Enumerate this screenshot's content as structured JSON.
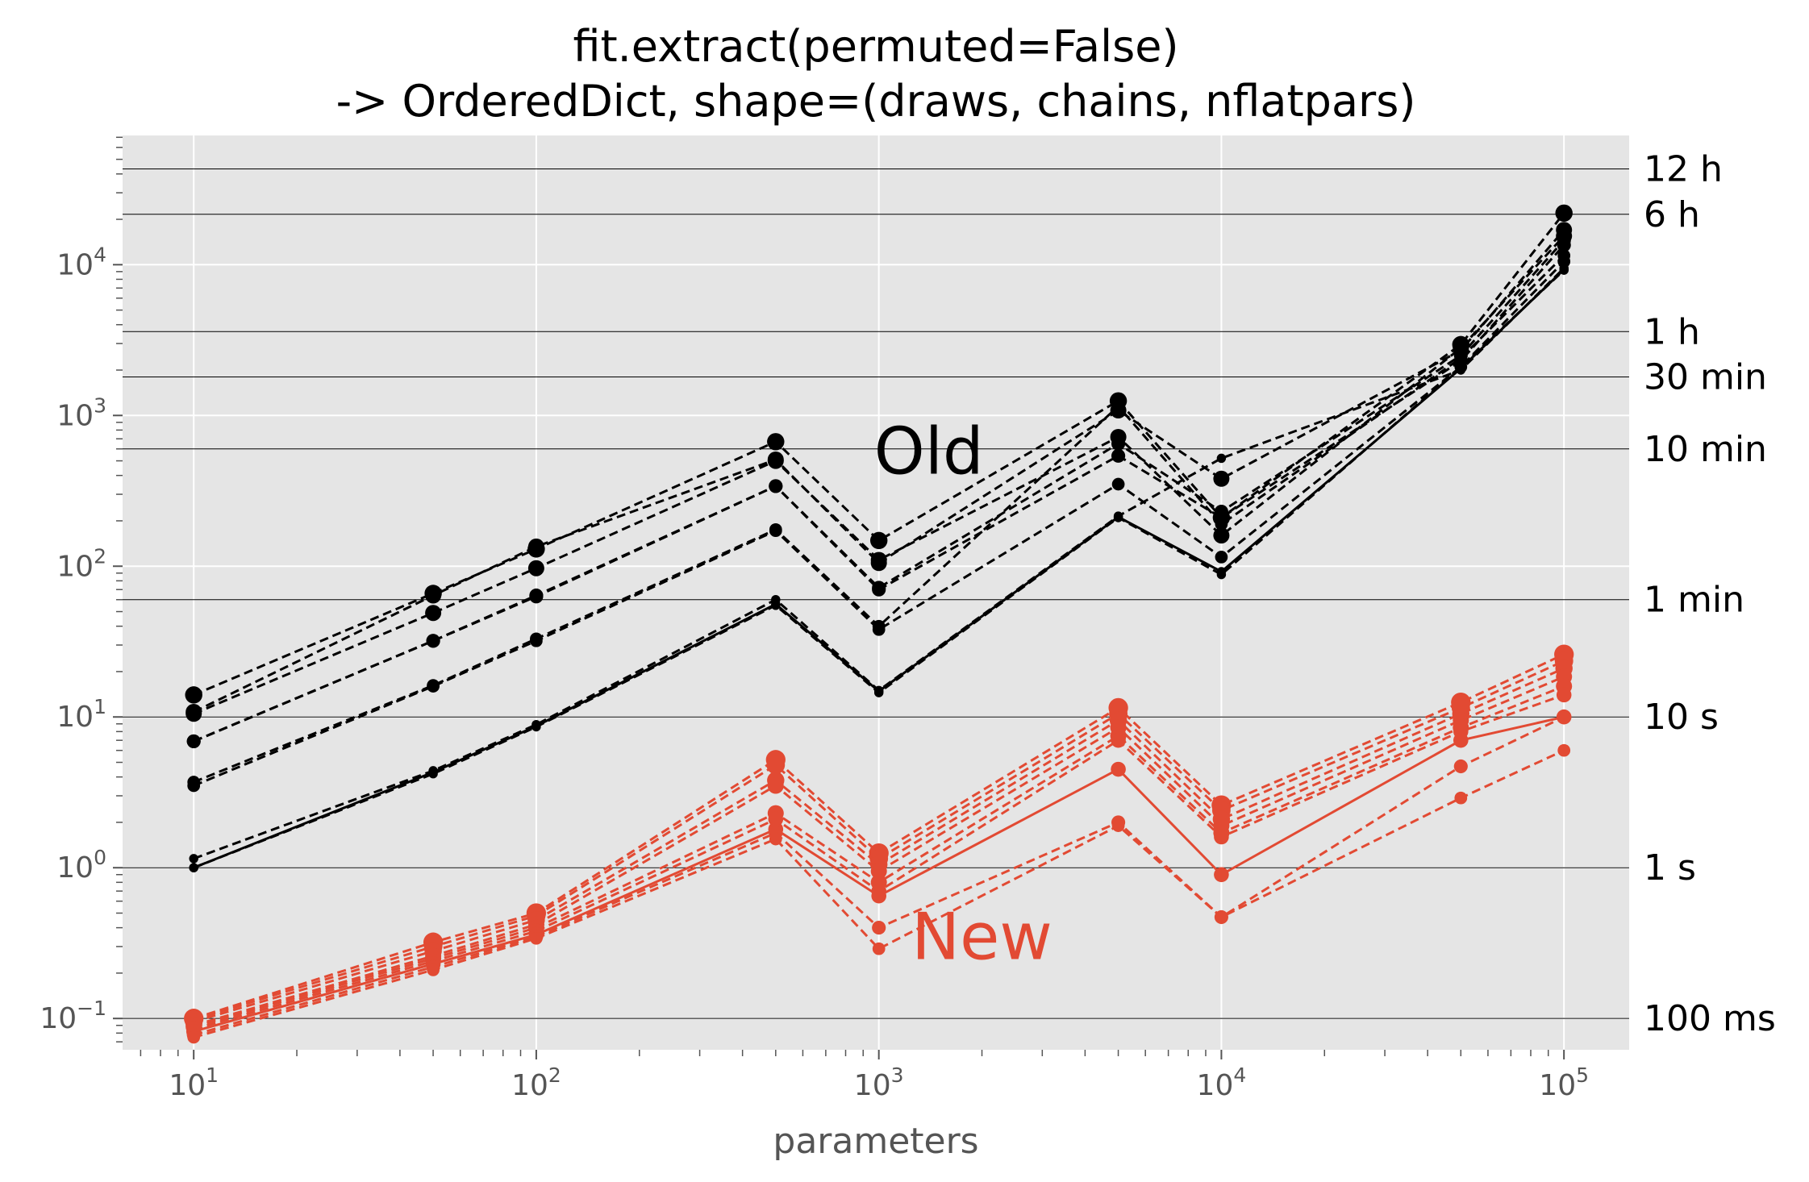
{
  "chart_data": {
    "type": "line",
    "title": "fit.extract(permuted=False)",
    "subtitle": "-> OrderedDict, shape=(draws, chains, nflatpars)",
    "xlabel": "parameters",
    "ylabel": "",
    "x_scale": "log",
    "y_scale": "log",
    "xlim": [
      6.2,
      155000
    ],
    "ylim": [
      0.062,
      72000
    ],
    "x_ticks": [
      {
        "value": 10,
        "base": "10",
        "exp": "1"
      },
      {
        "value": 100,
        "base": "10",
        "exp": "2"
      },
      {
        "value": 1000,
        "base": "10",
        "exp": "3"
      },
      {
        "value": 10000,
        "base": "10",
        "exp": "4"
      },
      {
        "value": 100000,
        "base": "10",
        "exp": "5"
      }
    ],
    "y_ticks": [
      {
        "value": 0.1,
        "base": "10",
        "exp": "−1"
      },
      {
        "value": 1,
        "base": "10",
        "exp": "0"
      },
      {
        "value": 10,
        "base": "10",
        "exp": "1"
      },
      {
        "value": 100,
        "base": "10",
        "exp": "2"
      },
      {
        "value": 1000,
        "base": "10",
        "exp": "3"
      },
      {
        "value": 10000,
        "base": "10",
        "exp": "4"
      }
    ],
    "time_references": [
      {
        "label": "100 ms",
        "seconds": 0.1
      },
      {
        "label": "1 s",
        "seconds": 1
      },
      {
        "label": "10 s",
        "seconds": 10
      },
      {
        "label": "1 min",
        "seconds": 60
      },
      {
        "label": "10 min",
        "seconds": 600
      },
      {
        "label": "30 min",
        "seconds": 1800
      },
      {
        "label": "1 h",
        "seconds": 3600
      },
      {
        "label": "6 h",
        "seconds": 21600
      },
      {
        "label": "12 h",
        "seconds": 43200
      }
    ],
    "annotations": [
      {
        "text": "Old",
        "x": 1400,
        "y": 580,
        "color": "#000000"
      },
      {
        "text": "New",
        "x": 2000,
        "y": 0.35,
        "color": "#e24a33"
      }
    ],
    "background": "#e5e5e5",
    "grid": true,
    "x": [
      10,
      50,
      100,
      500,
      1000,
      5000,
      10000,
      50000,
      100000
    ],
    "groups": [
      {
        "label": "Old",
        "color": "#000000",
        "series": [
          {
            "values": [
              14.0,
              66.0,
              130.0,
              670.0,
              148.0,
              1250.0,
              210.0,
              2950.0,
              22000.0
            ],
            "marker": 15,
            "dash": true
          },
          {
            "values": [
              10.8,
              64.0,
              135.0,
              510.0,
              105.0,
              1080.0,
              380.0,
              2700.0,
              17000.0
            ],
            "marker": 14,
            "dash": true
          },
          {
            "values": [
              10.5,
              49.0,
              97.0,
              500.0,
              110.0,
              720.0,
              160.0,
              2800.0,
              15500.0
            ],
            "marker": 14,
            "dash": true
          },
          {
            "values": [
              6.9,
              32.0,
              64.0,
              340.0,
              72.0,
              650.0,
              230.0,
              2500.0,
              14500.0
            ],
            "marker": 12,
            "dash": true
          },
          {
            "values": [
              6.9,
              32.0,
              63.0,
              340.0,
              70.0,
              540.0,
              210.0,
              2300.0,
              13500.0
            ],
            "marker": 12,
            "dash": true
          },
          {
            "values": [
              3.7,
              16.2,
              33.0,
              175.0,
              40.0,
              1150.0,
              190.0,
              2400.0,
              11500.0
            ],
            "marker": 11,
            "dash": true
          },
          {
            "values": [
              3.5,
              16.0,
              32.0,
              172.0,
              38.0,
              350.0,
              115.0,
              2100.0,
              10500.0
            ],
            "marker": 11,
            "dash": true
          },
          {
            "values": [
              1.15,
              4.4,
              8.9,
              60.0,
              15.0,
              215.0,
              520.0,
              2000.0,
              9500.0
            ],
            "marker": 8,
            "dash": true
          },
          {
            "values": [
              1.0,
              4.2,
              8.6,
              55.0,
              14.5,
              210.0,
              88.0,
              2100.0,
              9200.0
            ],
            "marker": 8,
            "dash": true
          },
          {
            "values": [
              1.0,
              4.3,
              8.7,
              56.0,
              14.8,
              212.0,
              92.0,
              2050.0,
              9300.0
            ],
            "marker": 8,
            "dash": false
          }
        ]
      },
      {
        "label": "New",
        "color": "#e24a33",
        "series": [
          {
            "values": [
              0.1,
              0.32,
              0.5,
              5.2,
              1.25,
              11.5,
              2.6,
              12.5,
              26.0
            ],
            "marker": 17,
            "dash": true
          },
          {
            "values": [
              0.098,
              0.3,
              0.48,
              4.8,
              1.15,
              10.5,
              2.4,
              11.5,
              23.5
            ],
            "marker": 16,
            "dash": true
          },
          {
            "values": [
              0.095,
              0.28,
              0.45,
              3.8,
              1.05,
              9.5,
              2.1,
              10.5,
              21.0
            ],
            "marker": 15,
            "dash": true
          },
          {
            "values": [
              0.09,
              0.26,
              0.42,
              3.5,
              0.95,
              8.5,
              1.9,
              9.5,
              18.5
            ],
            "marker": 14,
            "dash": true
          },
          {
            "values": [
              0.088,
              0.25,
              0.4,
              2.3,
              0.8,
              7.5,
              1.7,
              8.5,
              16.0
            ],
            "marker": 14,
            "dash": true
          },
          {
            "values": [
              0.085,
              0.24,
              0.38,
              2.1,
              0.7,
              7.0,
              1.6,
              8.0,
              14.0
            ],
            "marker": 13,
            "dash": true
          },
          {
            "values": [
              0.082,
              0.23,
              0.36,
              1.8,
              0.65,
              4.5,
              0.9,
              7.0,
              10.0
            ],
            "marker": 13,
            "dash": false
          },
          {
            "values": [
              0.078,
              0.22,
              0.35,
              1.7,
              0.4,
              2.0,
              0.47,
              4.7,
              10.0
            ],
            "marker": 12,
            "dash": true
          },
          {
            "values": [
              0.075,
              0.21,
              0.34,
              1.55,
              0.29,
              1.9,
              0.47,
              2.9,
              6.0
            ],
            "marker": 11,
            "dash": true
          }
        ]
      }
    ]
  }
}
